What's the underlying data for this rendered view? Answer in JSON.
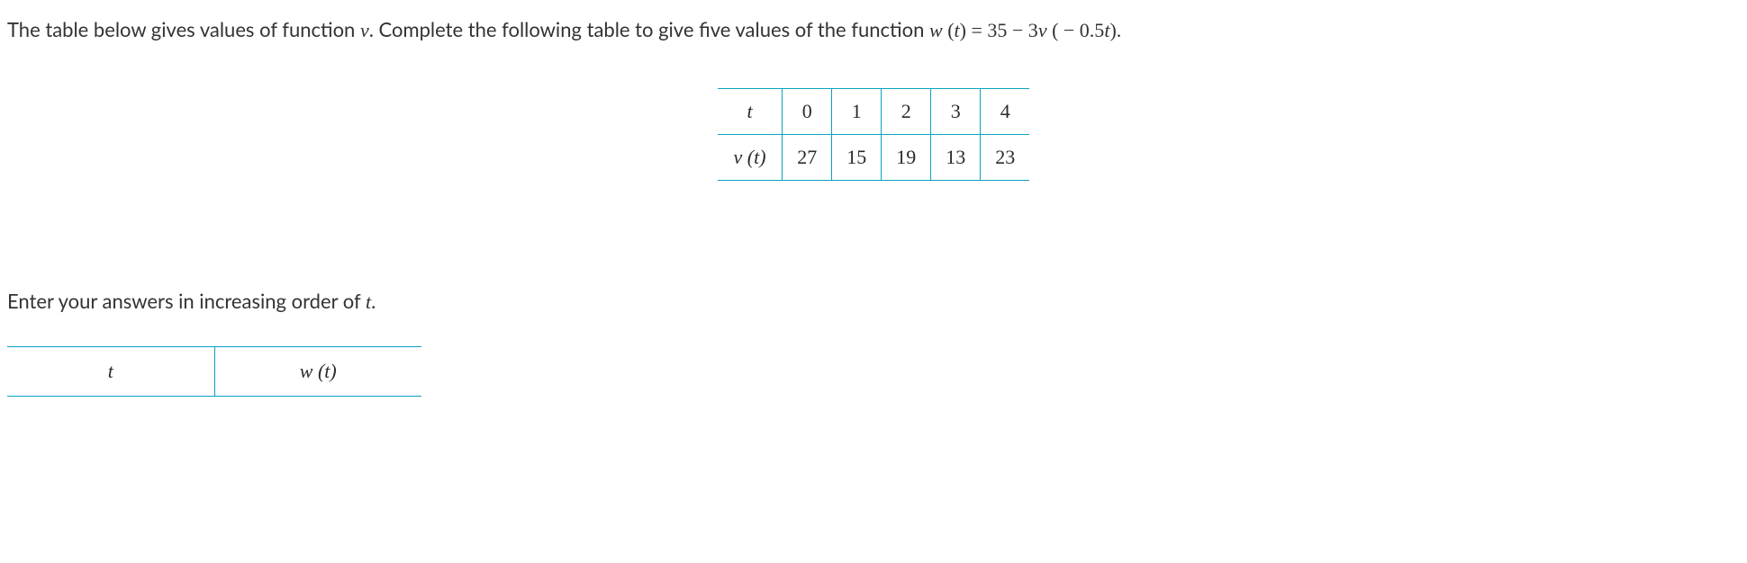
{
  "question": {
    "prefix": "The table below gives values of function ",
    "var_v": "v",
    "mid1": ". Complete the following table to give five values of the function ",
    "var_w": "w",
    "paren_t": " (t)",
    "eq": " = ",
    "rhs_a": "35 − 3",
    "rhs_v": "v",
    "rhs_b": " ( − 0.5",
    "rhs_t": "t",
    "rhs_c": ").",
    "period": ""
  },
  "given_table": {
    "row_labels": [
      "t",
      "v (t)"
    ],
    "columns": [
      "0",
      "1",
      "2",
      "3",
      "4"
    ],
    "values": [
      "27",
      "15",
      "19",
      "13",
      "23"
    ],
    "border_color": "#0aa2c0"
  },
  "instruction": {
    "prefix": "Enter your answers in increasing order of ",
    "var_t": "t",
    "suffix": "."
  },
  "answer_table": {
    "headers": [
      "t",
      "w (t)"
    ],
    "border_color": "#0aa2c0"
  }
}
